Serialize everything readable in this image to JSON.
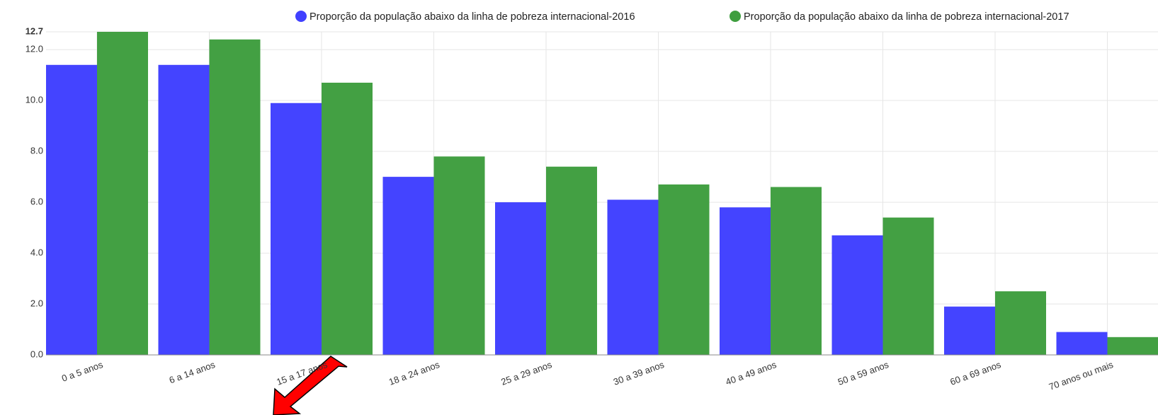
{
  "chart_data": {
    "type": "bar",
    "categories": [
      "0 a 5 anos",
      "6 a 14 anos",
      "15 a 17 anos",
      "18 a 24 anos",
      "25 a 29 anos",
      "30 a 39 anos",
      "40 a 49 anos",
      "50 a 59 anos",
      "60 a 69 anos",
      "70 anos ou mais"
    ],
    "series": [
      {
        "name": "Proporção da população abaixo da linha de pobreza internacional-2016",
        "color": "#4040ff",
        "values": [
          11.4,
          11.4,
          9.9,
          7.0,
          6.0,
          6.1,
          5.8,
          4.7,
          1.9,
          0.9
        ]
      },
      {
        "name": "Proporção da população abaixo da linha de pobreza internacional-2017",
        "color": "#3f9e3f",
        "values": [
          12.7,
          12.4,
          10.7,
          7.8,
          7.4,
          6.7,
          6.6,
          5.4,
          2.5,
          0.7
        ]
      }
    ],
    "ylim": [
      0,
      12.7
    ],
    "yticks": [
      {
        "value": 0,
        "label": "0.0"
      },
      {
        "value": 2,
        "label": "2.0"
      },
      {
        "value": 4,
        "label": "4.0"
      },
      {
        "value": 6,
        "label": "6.0"
      },
      {
        "value": 8,
        "label": "8.0"
      },
      {
        "value": 10,
        "label": "10.0"
      },
      {
        "value": 12,
        "label": "12.0"
      },
      12.7
    ],
    "grid": true,
    "legend": "top"
  }
}
